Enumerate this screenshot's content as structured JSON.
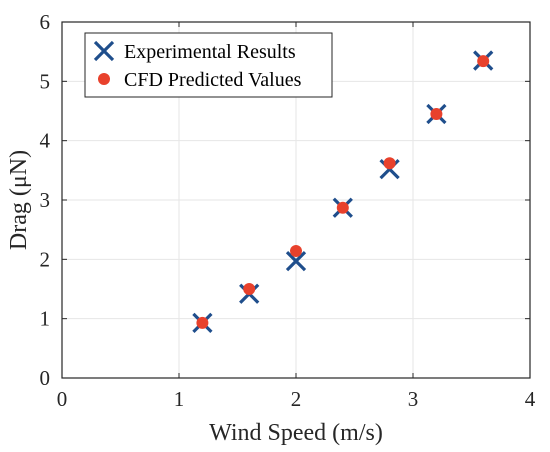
{
  "chart_data": {
    "type": "scatter",
    "xlabel": "Wind Speed (m/s)",
    "ylabel": "Drag (μN)",
    "xlim": [
      0,
      4
    ],
    "ylim": [
      0,
      6
    ],
    "xticks": [
      "0",
      "1",
      "2",
      "3",
      "4"
    ],
    "yticks": [
      "0",
      "1",
      "2",
      "3",
      "4",
      "5",
      "6"
    ],
    "grid": true,
    "legend_position": "top-left",
    "series": [
      {
        "name": "Experimental Results",
        "marker": "x",
        "color": "#1f4e8c",
        "x": [
          1.2,
          1.6,
          2.0,
          2.4,
          2.8,
          3.2,
          3.6
        ],
        "y": [
          0.93,
          1.42,
          1.97,
          2.87,
          3.52,
          4.45,
          5.35
        ]
      },
      {
        "name": "CFD Predicted Values",
        "marker": "circle",
        "color": "#e8412c",
        "x": [
          1.2,
          1.6,
          2.0,
          2.4,
          2.8,
          3.2,
          3.6
        ],
        "y": [
          0.93,
          1.5,
          2.14,
          2.87,
          3.62,
          4.45,
          5.34
        ]
      }
    ]
  }
}
